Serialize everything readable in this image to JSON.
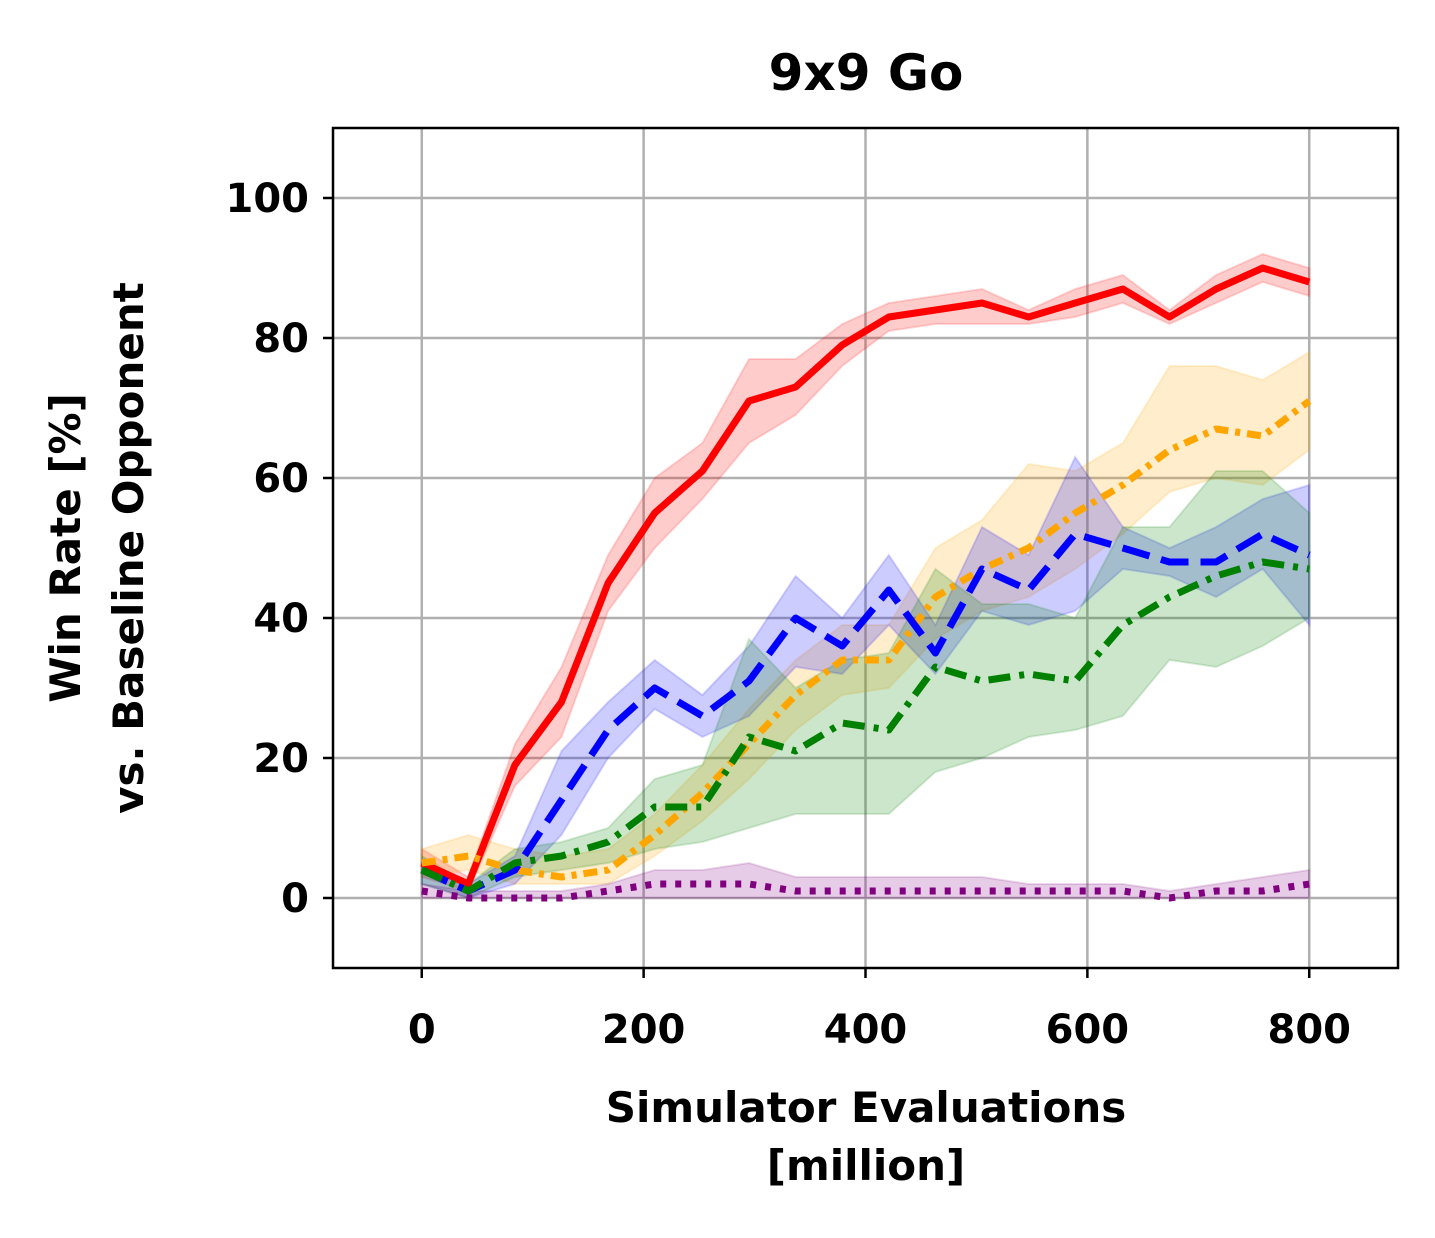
{
  "chart_data": {
    "type": "line",
    "title": "9x9 Go",
    "xlabel": [
      "Simulator Evaluations",
      "[million]"
    ],
    "ylabel": [
      "Win Rate [%]",
      "vs. Baseline Opponent"
    ],
    "xlim": [
      -80,
      880
    ],
    "ylim": [
      -10,
      110
    ],
    "xticks": [
      0,
      200,
      400,
      600,
      800
    ],
    "yticks": [
      0,
      20,
      40,
      60,
      80,
      100
    ],
    "grid": true,
    "x": [
      0,
      42,
      84,
      126,
      168,
      210,
      253,
      295,
      337,
      379,
      421,
      463,
      505,
      547,
      589,
      632,
      674,
      716,
      758,
      800
    ],
    "series": [
      {
        "name": "red",
        "color": "#ff0000",
        "dash": "solid",
        "values": [
          5,
          2,
          19,
          28,
          45,
          55,
          61,
          71,
          73,
          79,
          83,
          84,
          85,
          83,
          85,
          87,
          83,
          87,
          90,
          88
        ],
        "lower": [
          3,
          1,
          16,
          23,
          41,
          50,
          57,
          65,
          69,
          76,
          81,
          82,
          82,
          82,
          83,
          85,
          82,
          85,
          88,
          86
        ],
        "upper": [
          7,
          3,
          22,
          33,
          49,
          60,
          65,
          77,
          77,
          82,
          85,
          86,
          87,
          84,
          87,
          89,
          84,
          89,
          92,
          90
        ]
      },
      {
        "name": "orange",
        "color": "#ffa500",
        "dash": "dashdot-dense",
        "values": [
          5,
          6,
          4,
          3,
          4,
          9,
          15,
          22,
          29,
          34,
          34,
          43,
          47,
          50,
          55,
          59,
          64,
          67,
          66,
          71
        ],
        "lower": [
          3,
          4,
          2,
          2,
          2,
          6,
          11,
          17,
          24,
          29,
          30,
          37,
          41,
          43,
          47,
          52,
          58,
          60,
          59,
          64
        ],
        "upper": [
          7,
          9,
          7,
          6,
          7,
          12,
          19,
          27,
          34,
          39,
          39,
          50,
          54,
          62,
          61,
          65,
          76,
          76,
          74,
          78
        ]
      },
      {
        "name": "blue",
        "color": "#0000ff",
        "dash": "dashed",
        "values": [
          4,
          1,
          4,
          14,
          24,
          30,
          26,
          31,
          40,
          36,
          44,
          35,
          47,
          44,
          52,
          50,
          48,
          48,
          52,
          49
        ],
        "lower": [
          2,
          0,
          2,
          9,
          20,
          27,
          23,
          26,
          33,
          32,
          39,
          32,
          41,
          39,
          41,
          47,
          46,
          43,
          47,
          39
        ],
        "upper": [
          5,
          2,
          6,
          21,
          28,
          34,
          29,
          36,
          46,
          40,
          49,
          39,
          53,
          49,
          63,
          53,
          50,
          53,
          57,
          59
        ]
      },
      {
        "name": "green",
        "color": "#008000",
        "dash": "dashdot",
        "values": [
          4,
          1,
          5,
          6,
          8,
          13,
          13,
          23,
          21,
          25,
          24,
          33,
          31,
          32,
          31,
          39,
          43,
          46,
          48,
          47
        ],
        "lower": [
          2,
          0,
          3,
          4,
          5,
          7,
          8,
          10,
          12,
          12,
          12,
          18,
          20,
          23,
          24,
          26,
          34,
          33,
          36,
          40
        ],
        "upper": [
          6,
          2,
          7,
          8,
          10,
          17,
          19,
          37,
          30,
          34,
          35,
          47,
          42,
          42,
          40,
          53,
          53,
          61,
          61,
          55
        ]
      },
      {
        "name": "purple",
        "color": "#800080",
        "dash": "dotted",
        "values": [
          1,
          0,
          0,
          0,
          1,
          2,
          2,
          2,
          1,
          1,
          1,
          1,
          1,
          1,
          1,
          1,
          0,
          1,
          1,
          2
        ],
        "lower": [
          0,
          0,
          0,
          0,
          0,
          0,
          0,
          0,
          0,
          0,
          0,
          0,
          0,
          0,
          0,
          0,
          0,
          0,
          0,
          0
        ],
        "upper": [
          2,
          1,
          1,
          1,
          2,
          4,
          4,
          5,
          3,
          3,
          3,
          3,
          3,
          2,
          2,
          2,
          1,
          2,
          3,
          4
        ]
      }
    ]
  }
}
